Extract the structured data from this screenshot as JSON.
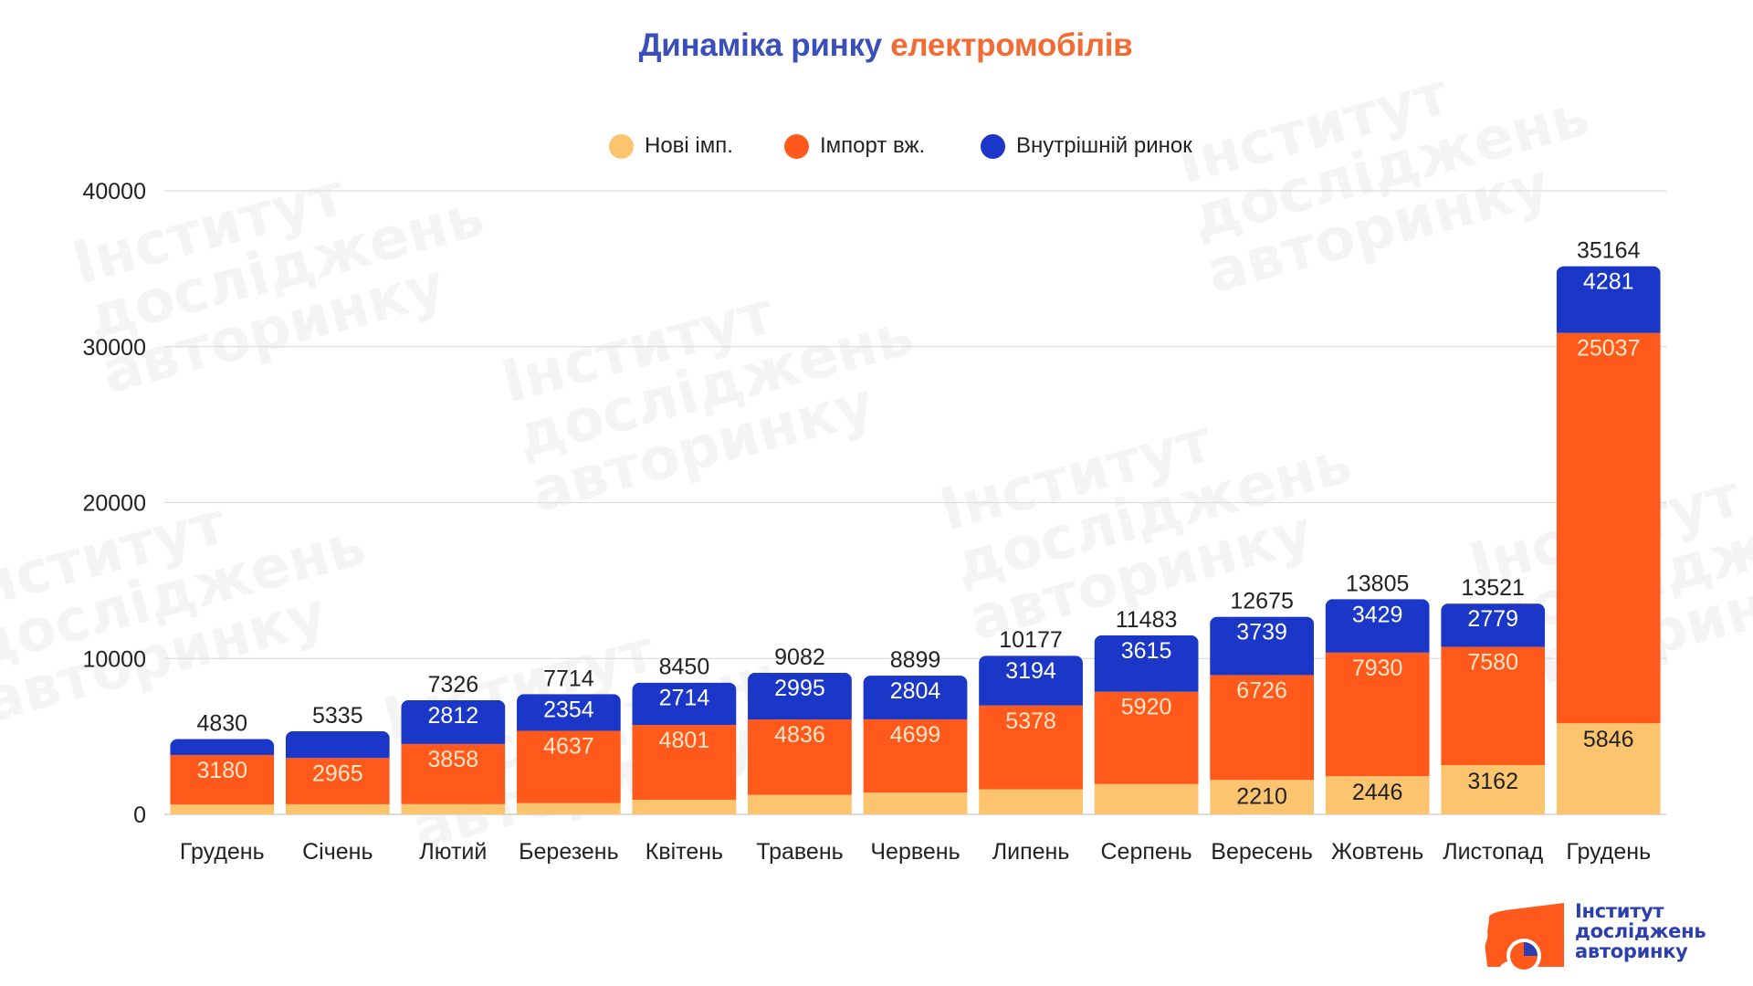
{
  "title": {
    "part1": "Динаміка ринку",
    "part2": "електромобілів"
  },
  "colors": {
    "title_blue": "#3a4fb9",
    "title_orange": "#f26b35",
    "new_imports": "#fdc46f",
    "used_imports": "#ff5a1c",
    "domestic": "#1b37c8",
    "grid": "#dddddd",
    "logo_orange": "#ff5a1c",
    "logo_blue": "#2b3fae"
  },
  "logo": {
    "line1": "Інститут",
    "line2": "досліджень",
    "line3": "авторинку"
  },
  "chart_data": {
    "type": "bar",
    "stacked": true,
    "title": "Динаміка ринку електромобілів",
    "xlabel": "",
    "ylabel": "",
    "ylim": [
      0,
      40000
    ],
    "yticks": [
      0,
      10000,
      20000,
      30000,
      40000
    ],
    "ytick_labels": [
      "0",
      "10000",
      "20000",
      "30000",
      "40000"
    ],
    "grid": true,
    "legend_position": "top-center",
    "categories": [
      "Грудень",
      "Січень",
      "Лютий",
      "Березень",
      "Квітень",
      "Травень",
      "Червень",
      "Липень",
      "Серпень",
      "Вересень",
      "Жовтень",
      "Листопад",
      "Грудень"
    ],
    "series": [
      {
        "name": "Нові імп.",
        "values": [
          630,
          650,
          656,
          723,
          935,
          1251,
          1396,
          1605,
          1948,
          2210,
          2446,
          3162,
          5846
        ],
        "labels": [
          "",
          "",
          "",
          "",
          "",
          "",
          "",
          "",
          "",
          "2210",
          "2446",
          "3162",
          "5846"
        ]
      },
      {
        "name": "Імпорт вж.",
        "values": [
          3180,
          2965,
          3858,
          4637,
          4801,
          4836,
          4699,
          5378,
          5920,
          6726,
          7930,
          7580,
          25037
        ],
        "labels": [
          "3180",
          "2965",
          "3858",
          "4637",
          "4801",
          "4836",
          "4699",
          "5378",
          "5920",
          "6726",
          "7930",
          "7580",
          "25037"
        ]
      },
      {
        "name": "Внутрішній ринок",
        "values": [
          1020,
          1720,
          2812,
          2354,
          2714,
          2995,
          2804,
          3194,
          3615,
          3739,
          3429,
          2779,
          4281
        ],
        "labels": [
          "",
          "",
          "2812",
          "2354",
          "2714",
          "2995",
          "2804",
          "3194",
          "3615",
          "3739",
          "3429",
          "2779",
          "4281"
        ]
      }
    ],
    "totals": [
      "4830",
      "5335",
      "7326",
      "7714",
      "8450",
      "9082",
      "8899",
      "10177",
      "11483",
      "12675",
      "13805",
      "13521",
      "35164"
    ]
  }
}
